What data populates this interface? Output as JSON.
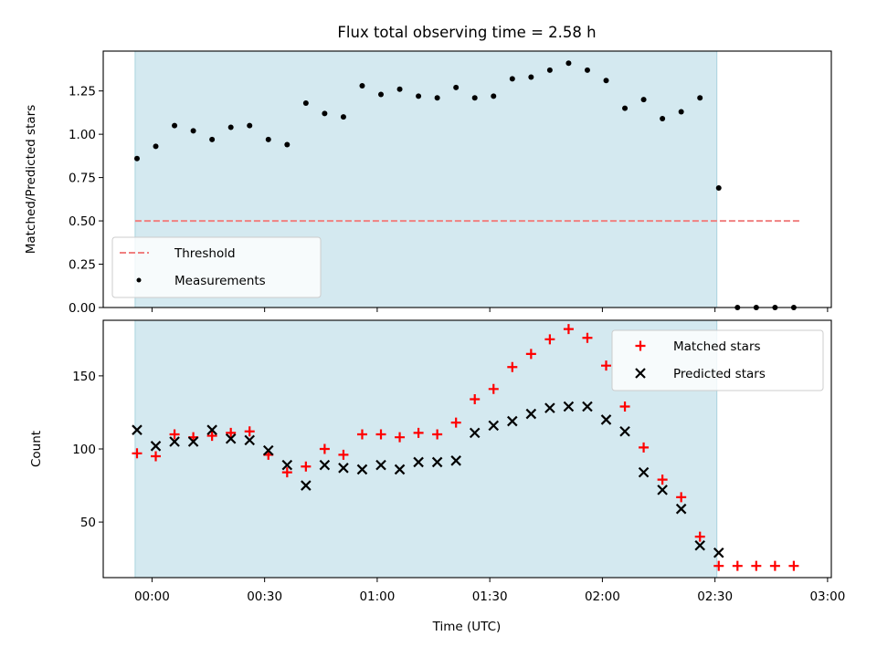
{
  "chart_data": {
    "type": "scatter",
    "title": "Flux total observing time = 2.58 h",
    "xlabel": "Time (UTC)",
    "x_tick_labels": [
      "00:00",
      "00:30",
      "01:00",
      "01:30",
      "02:00",
      "02:30",
      "03:00"
    ],
    "x_ticks_min": [
      0,
      30,
      60,
      90,
      120,
      150,
      180
    ],
    "xlim_min": [
      -13,
      181
    ],
    "shaded_span_min": [
      -4.5,
      150.5
    ],
    "shade_color": "#d4e9f0",
    "panels": [
      {
        "ylabel": "Matched/Predicted stars",
        "ylim": [
          0,
          1.48
        ],
        "y_ticks": [
          0.0,
          0.25,
          0.5,
          0.75,
          1.0,
          1.25
        ],
        "y_tick_labels": [
          "0.00",
          "0.25",
          "0.50",
          "0.75",
          "1.00",
          "1.25"
        ],
        "threshold": {
          "name": "Threshold",
          "y": 0.5,
          "x_range_min": [
            -4.5,
            172.5
          ],
          "color": "#f08080"
        },
        "legend": {
          "placement": "lower-left",
          "entries": [
            "Threshold",
            "Measurements"
          ]
        },
        "series": [
          {
            "name": "Measurements",
            "marker": "dot",
            "color": "#000000",
            "x_min": [
              -4,
              1,
              6,
              11,
              16,
              21,
              26,
              31,
              36,
              41,
              46,
              51,
              56,
              61,
              66,
              71,
              76,
              81,
              86,
              91,
              96,
              101,
              106,
              111,
              116,
              121,
              126,
              131,
              136,
              141,
              146,
              151,
              156,
              161,
              166,
              171
            ],
            "y": [
              0.86,
              0.93,
              1.05,
              1.02,
              0.97,
              1.04,
              1.05,
              0.97,
              0.94,
              1.18,
              1.12,
              1.1,
              1.28,
              1.23,
              1.26,
              1.22,
              1.21,
              1.27,
              1.21,
              1.22,
              1.32,
              1.33,
              1.37,
              1.41,
              1.37,
              1.31,
              1.15,
              1.2,
              1.09,
              1.13,
              1.21,
              0.69,
              0.0,
              0.0,
              0.0,
              0.0
            ]
          }
        ]
      },
      {
        "ylabel": "Count",
        "ylim": [
          12,
          188
        ],
        "y_ticks": [
          50,
          100,
          150
        ],
        "y_tick_labels": [
          "50",
          "100",
          "150"
        ],
        "legend": {
          "placement": "top-right",
          "entries": [
            "Matched stars",
            "Predicted stars"
          ]
        },
        "series": [
          {
            "name": "Matched stars",
            "marker": "plus",
            "color": "#ff0000",
            "x_min": [
              -4,
              1,
              6,
              11,
              16,
              21,
              26,
              31,
              36,
              41,
              46,
              51,
              56,
              61,
              66,
              71,
              76,
              81,
              86,
              91,
              96,
              101,
              106,
              111,
              116,
              121,
              126,
              131,
              136,
              141,
              146,
              151,
              156,
              161,
              166,
              171
            ],
            "y": [
              97,
              95,
              110,
              108,
              109,
              111,
              112,
              96,
              84,
              88,
              100,
              96,
              110,
              110,
              108,
              111,
              110,
              118,
              134,
              141,
              156,
              165,
              175,
              182,
              176,
              157,
              129,
              101,
              79,
              67,
              40,
              20,
              20,
              20,
              20,
              20
            ]
          },
          {
            "name": "Predicted stars",
            "marker": "x",
            "color": "#000000",
            "x_min": [
              -4,
              1,
              6,
              11,
              16,
              21,
              26,
              31,
              36,
              41,
              46,
              51,
              56,
              61,
              66,
              71,
              76,
              81,
              86,
              91,
              96,
              101,
              106,
              111,
              116,
              121,
              126,
              131,
              136,
              141,
              146,
              151
            ],
            "y": [
              113,
              102,
              105,
              105,
              113,
              107,
              106,
              99,
              89,
              75,
              89,
              87,
              86,
              89,
              86,
              91,
              91,
              92,
              111,
              116,
              119,
              124,
              128,
              129,
              129,
              120,
              112,
              84,
              72,
              59,
              34,
              29
            ]
          }
        ]
      }
    ]
  }
}
